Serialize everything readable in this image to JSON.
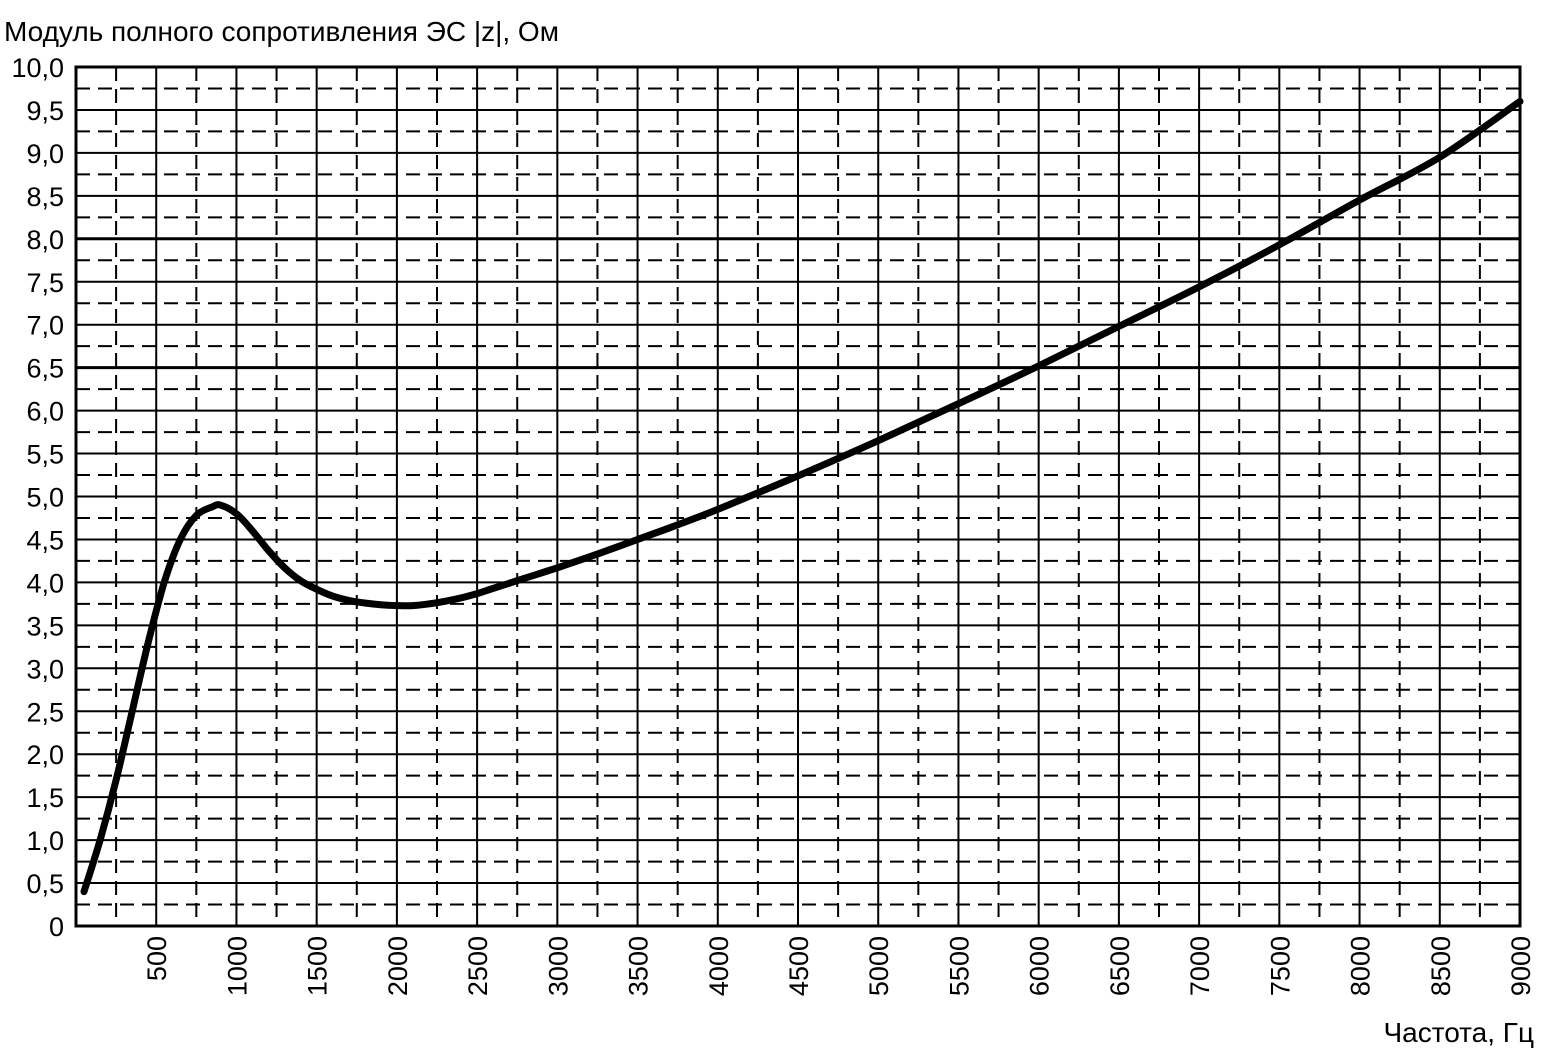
{
  "chart_data": {
    "type": "line",
    "ylabel": "Модуль полного сопротивления ЭС |z|, Ом",
    "xlabel": "Частота, Гц",
    "xlim": [
      0,
      9000
    ],
    "ylim": [
      0,
      10
    ],
    "x_ticks": [
      "500",
      "1000",
      "1500",
      "2000",
      "2500",
      "3000",
      "3500",
      "4000",
      "4500",
      "5000",
      "5500",
      "6000",
      "6500",
      "7000",
      "7500",
      "8000",
      "8500",
      "9000"
    ],
    "y_ticks": [
      "0",
      "0,5",
      "1,0",
      "1,5",
      "2,0",
      "2,5",
      "3,0",
      "3,5",
      "4,0",
      "4,5",
      "5,0",
      "5,5",
      "6,0",
      "6,5",
      "7,0",
      "7,5",
      "8,0",
      "8,5",
      "9,0",
      "9,5",
      "10,0"
    ],
    "grid": true,
    "series": [
      {
        "x": [
          50,
          150,
          250,
          350,
          450,
          550,
          650,
          750,
          850,
          900,
          1000,
          1100,
          1200,
          1300,
          1400,
          1500,
          1600,
          1700,
          1800,
          1900,
          2000,
          2100,
          2200,
          2300,
          2400,
          2500,
          2600,
          2700,
          2800,
          2900,
          3000,
          3250,
          3500,
          3750,
          4000,
          4500,
          5000,
          5500,
          6000,
          6500,
          7000,
          7500,
          8000,
          8500,
          9000
        ],
        "y": [
          0.4,
          1.0,
          1.7,
          2.5,
          3.3,
          4.0,
          4.5,
          4.78,
          4.88,
          4.9,
          4.8,
          4.6,
          4.37,
          4.17,
          4.02,
          3.92,
          3.84,
          3.79,
          3.76,
          3.74,
          3.73,
          3.73,
          3.75,
          3.78,
          3.82,
          3.87,
          3.93,
          3.99,
          4.05,
          4.11,
          4.17,
          4.33,
          4.5,
          4.67,
          4.85,
          5.24,
          5.65,
          6.08,
          6.52,
          6.98,
          7.44,
          7.93,
          8.45,
          8.95,
          9.6
        ]
      }
    ]
  }
}
